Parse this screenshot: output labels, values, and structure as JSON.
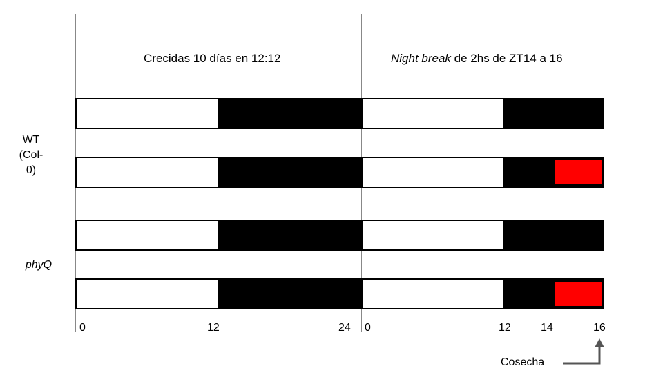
{
  "phase1": {
    "title": "Crecidas 10 días en 12:12"
  },
  "phase2": {
    "title_italic": "Night break",
    "title_rest": " de 2hs de ZT14 a 16"
  },
  "groups": {
    "wt": {
      "line1": "WT",
      "line2": "(Col-0)"
    },
    "phyq": {
      "label": "phyQ"
    }
  },
  "axis": {
    "phase1_ticks": [
      "0",
      "12",
      "24"
    ],
    "phase2_ticks": [
      "0",
      "12",
      "14",
      "16"
    ]
  },
  "harvest": {
    "label": "Cosecha"
  },
  "colors": {
    "light": "#ffffff",
    "dark": "#000000",
    "night_break": "#ff0000",
    "divider": "#888888",
    "arrow": "#555555"
  }
}
